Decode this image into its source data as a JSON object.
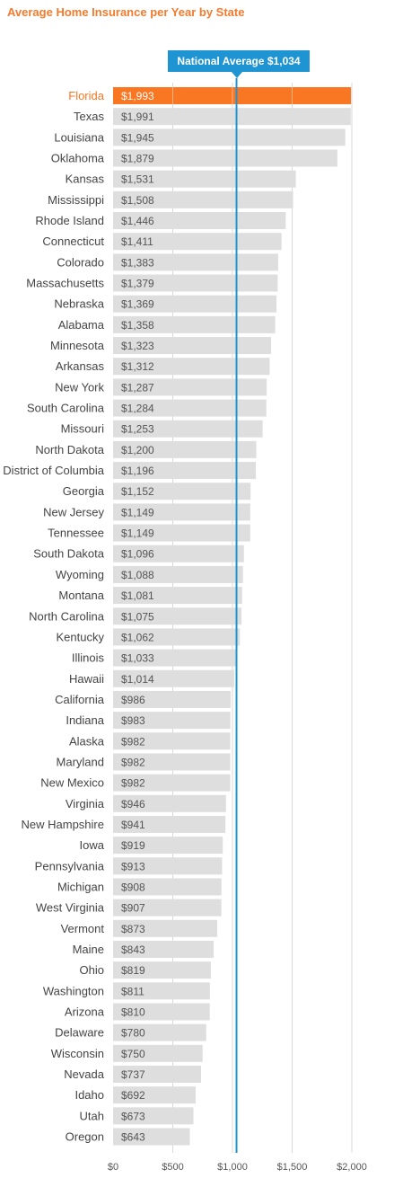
{
  "chart_data": {
    "type": "bar",
    "orientation": "horizontal",
    "title": "Average Home Insurance per Year by State",
    "categories": [
      "Florida",
      "Texas",
      "Louisiana",
      "Oklahoma",
      "Kansas",
      "Mississippi",
      "Rhode Island",
      "Connecticut",
      "Colorado",
      "Massachusetts",
      "Nebraska",
      "Alabama",
      "Minnesota",
      "Arkansas",
      "New York",
      "South Carolina",
      "Missouri",
      "North Dakota",
      "District of Columbia",
      "Georgia",
      "New Jersey",
      "Tennessee",
      "South Dakota",
      "Wyoming",
      "Montana",
      "North Carolina",
      "Kentucky",
      "Illinois",
      "Hawaii",
      "California",
      "Indiana",
      "Alaska",
      "Maryland",
      "New Mexico",
      "Virginia",
      "New Hampshire",
      "Iowa",
      "Pennsylvania",
      "Michigan",
      "West Virginia",
      "Vermont",
      "Maine",
      "Ohio",
      "Washington",
      "Arizona",
      "Delaware",
      "Wisconsin",
      "Nevada",
      "Idaho",
      "Utah",
      "Oregon"
    ],
    "values": [
      1993,
      1991,
      1945,
      1879,
      1531,
      1508,
      1446,
      1411,
      1383,
      1379,
      1369,
      1358,
      1323,
      1312,
      1287,
      1284,
      1253,
      1200,
      1196,
      1152,
      1149,
      1149,
      1096,
      1088,
      1081,
      1075,
      1062,
      1033,
      1014,
      986,
      983,
      982,
      982,
      982,
      946,
      941,
      919,
      913,
      908,
      907,
      873,
      843,
      819,
      811,
      810,
      780,
      750,
      737,
      692,
      673,
      643
    ],
    "value_labels": [
      "$1,993",
      "$1,991",
      "$1,945",
      "$1,879",
      "$1,531",
      "$1,508",
      "$1,446",
      "$1,411",
      "$1,383",
      "$1,379",
      "$1,369",
      "$1,358",
      "$1,323",
      "$1,312",
      "$1,287",
      "$1,284",
      "$1,253",
      "$1,200",
      "$1,196",
      "$1,152",
      "$1,149",
      "$1,149",
      "$1,096",
      "$1,088",
      "$1,081",
      "$1,075",
      "$1,062",
      "$1,033",
      "$1,014",
      "$986",
      "$983",
      "$982",
      "$982",
      "$982",
      "$946",
      "$941",
      "$919",
      "$913",
      "$908",
      "$907",
      "$873",
      "$843",
      "$819",
      "$811",
      "$810",
      "$780",
      "$750",
      "$737",
      "$692",
      "$673",
      "$643"
    ],
    "highlight_category": "Florida",
    "xlim": [
      0,
      2000
    ],
    "x_ticks": [
      0,
      500,
      1000,
      1500,
      2000
    ],
    "x_tick_labels": [
      "$0",
      "$500",
      "$1,000",
      "$1,500",
      "$2,000"
    ],
    "grid": true,
    "reference_line": {
      "value": 1034,
      "label": "National Average $1,034"
    },
    "colors": {
      "bar": "#dedede",
      "highlight": "#f97623",
      "reference": "#1f94d2",
      "title": "#f47a2c",
      "grid": "#d9d9d9",
      "label": "#444444",
      "value_text": "#555555"
    }
  }
}
